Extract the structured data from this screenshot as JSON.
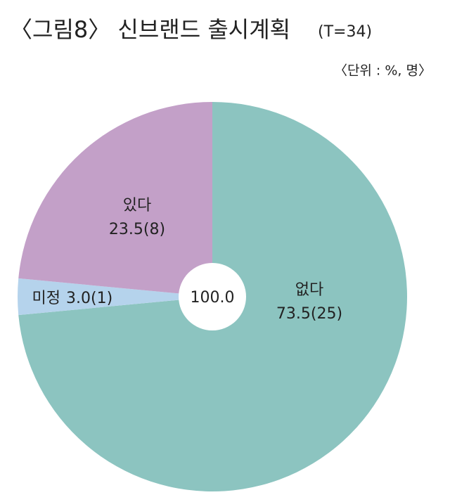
{
  "chart_data": {
    "type": "pie",
    "title": "〈그림8〉 신브랜드 출시계획",
    "subtitle": "(T=34)",
    "unit": "〈단위 : %, 명〉",
    "center_label": "100.0",
    "categories": [
      "없다",
      "미정",
      "있다"
    ],
    "values": [
      73.5,
      3.0,
      23.5
    ],
    "value_labels": [
      "73.5(25)",
      "3.0(1)",
      "23.5(8)"
    ],
    "colors": [
      "#8cc4c0",
      "#b5d3ec",
      "#c3a0c8"
    ]
  }
}
